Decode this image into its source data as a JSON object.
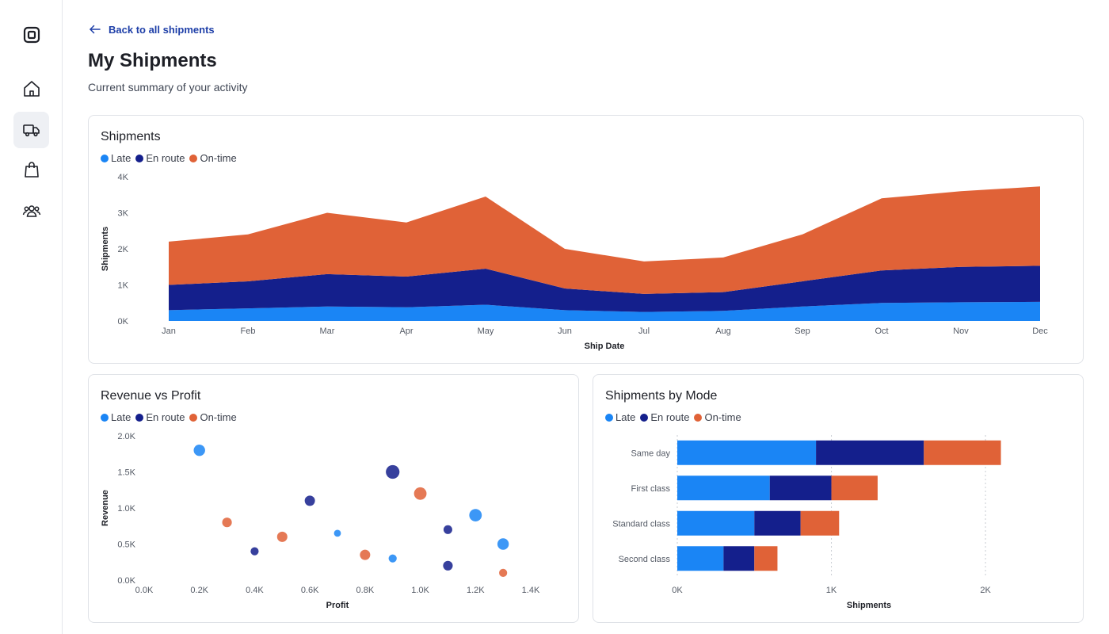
{
  "nav": {
    "items": [
      {
        "name": "logo-icon",
        "active": false
      },
      {
        "name": "home-icon",
        "active": false
      },
      {
        "name": "truck-icon",
        "active": true
      },
      {
        "name": "shopping-bag-icon",
        "active": false
      },
      {
        "name": "users-icon",
        "active": false
      }
    ]
  },
  "header": {
    "back_label": "Back to all shipments",
    "title": "My Shipments",
    "subtitle": "Current summary of your activity"
  },
  "colors": {
    "late": "#1a85f5",
    "en_route": "#141f8c",
    "on_time": "#e06237",
    "accent": "#1e3fa8"
  },
  "legend": [
    "Late",
    "En route",
    "On-time"
  ],
  "chart_data": [
    {
      "id": "shipments",
      "type": "area",
      "stacked": true,
      "title": "Shipments",
      "xlabel": "Ship Date",
      "ylabel": "Shipments",
      "categories": [
        "Jan",
        "Feb",
        "Mar",
        "Apr",
        "May",
        "Jun",
        "Jul",
        "Aug",
        "Sep",
        "Oct",
        "Nov",
        "Dec"
      ],
      "ylim": [
        0,
        4000
      ],
      "yticks": [
        "0K",
        "1K",
        "2K",
        "3K",
        "4K"
      ],
      "series": [
        {
          "name": "Late",
          "values": [
            300,
            350,
            400,
            380,
            450,
            300,
            250,
            280,
            400,
            500,
            520,
            530
          ]
        },
        {
          "name": "En route",
          "values": [
            700,
            750,
            900,
            850,
            1000,
            600,
            500,
            520,
            700,
            900,
            980,
            1000
          ]
        },
        {
          "name": "On-time",
          "values": [
            1200,
            1300,
            1700,
            1500,
            2000,
            1100,
            900,
            960,
            1300,
            2000,
            2100,
            2200
          ]
        }
      ]
    },
    {
      "id": "revenue_profit",
      "type": "scatter",
      "title": "Revenue vs Profit",
      "xlabel": "Profit",
      "ylabel": "Revenue",
      "xlim": [
        0,
        1.4
      ],
      "ylim": [
        0,
        2.0
      ],
      "xticks": [
        "0.0K",
        "0.2K",
        "0.4K",
        "0.6K",
        "0.8K",
        "1.0K",
        "1.2K",
        "1.4K"
      ],
      "yticks": [
        "0.0K",
        "0.5K",
        "1.0K",
        "1.5K",
        "2.0K"
      ],
      "unit": "thousands",
      "points": [
        {
          "series": "Late",
          "x": 0.2,
          "y": 1.8,
          "size": 3
        },
        {
          "series": "Late",
          "x": 0.7,
          "y": 0.65,
          "size": 1
        },
        {
          "series": "Late",
          "x": 0.9,
          "y": 0.3,
          "size": 1.5
        },
        {
          "series": "Late",
          "x": 1.2,
          "y": 0.9,
          "size": 3.5
        },
        {
          "series": "Late",
          "x": 1.3,
          "y": 0.5,
          "size": 3
        },
        {
          "series": "En route",
          "x": 0.4,
          "y": 0.4,
          "size": 1.5
        },
        {
          "series": "En route",
          "x": 0.6,
          "y": 1.1,
          "size": 2.5
        },
        {
          "series": "En route",
          "x": 0.9,
          "y": 1.5,
          "size": 4
        },
        {
          "series": "En route",
          "x": 1.1,
          "y": 0.7,
          "size": 1.8
        },
        {
          "series": "En route",
          "x": 1.1,
          "y": 0.2,
          "size": 2.2
        },
        {
          "series": "On-time",
          "x": 0.3,
          "y": 0.8,
          "size": 2.2
        },
        {
          "series": "On-time",
          "x": 0.5,
          "y": 0.6,
          "size": 2.5
        },
        {
          "series": "On-time",
          "x": 0.8,
          "y": 0.35,
          "size": 2.5
        },
        {
          "series": "On-time",
          "x": 1.0,
          "y": 1.2,
          "size": 3.5
        },
        {
          "series": "On-time",
          "x": 1.3,
          "y": 0.1,
          "size": 1.5
        }
      ]
    },
    {
      "id": "shipments_by_mode",
      "type": "bar",
      "orientation": "horizontal",
      "stacked": true,
      "title": "Shipments by Mode",
      "xlabel": "Shipments",
      "categories": [
        "Same day",
        "First class",
        "Standard class",
        "Second class"
      ],
      "xlim": [
        0,
        2200
      ],
      "xticks": [
        {
          "label": "0K",
          "value": 0
        },
        {
          "label": "1K",
          "value": 1000
        },
        {
          "label": "2K",
          "value": 2000
        }
      ],
      "series": [
        {
          "name": "Late",
          "values": [
            900,
            600,
            500,
            300
          ]
        },
        {
          "name": "En route",
          "values": [
            700,
            400,
            300,
            200
          ]
        },
        {
          "name": "On-time",
          "values": [
            500,
            300,
            250,
            150
          ]
        }
      ]
    }
  ]
}
